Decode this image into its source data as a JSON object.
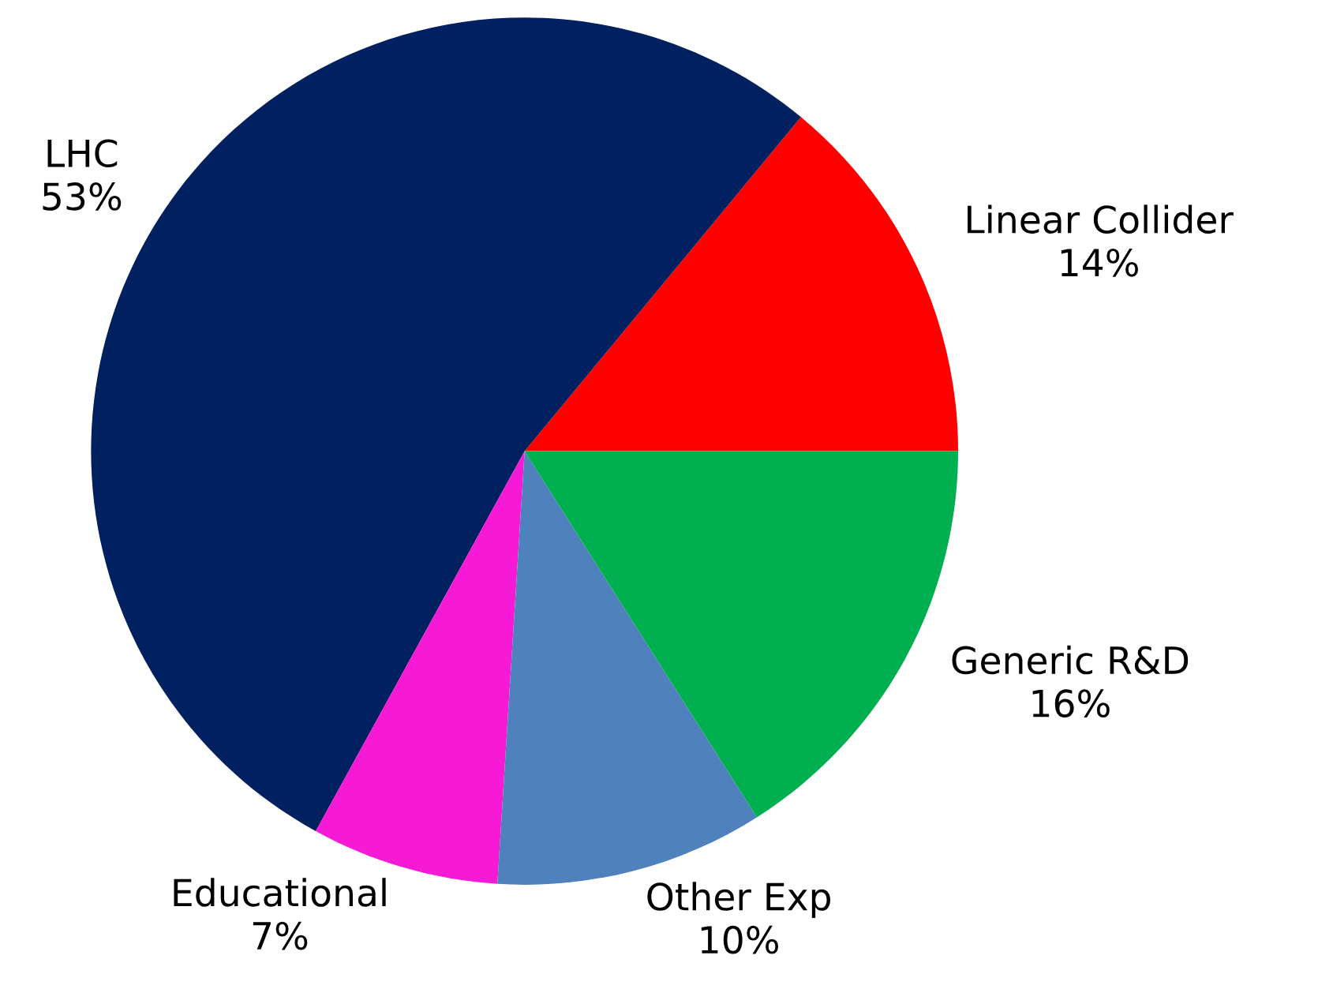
{
  "chart_data": {
    "type": "pie",
    "categories": [
      "Linear Collider",
      "LHC",
      "Educational",
      "Other Exp",
      "Generic R&D"
    ],
    "values": [
      14,
      53,
      7,
      10,
      16
    ],
    "colors": [
      "#ff0000",
      "#002060",
      "#f619d6",
      "#4f81bd",
      "#00b050"
    ],
    "value_labels": [
      "14%",
      "53%",
      "7%",
      "10%",
      "16%"
    ]
  }
}
